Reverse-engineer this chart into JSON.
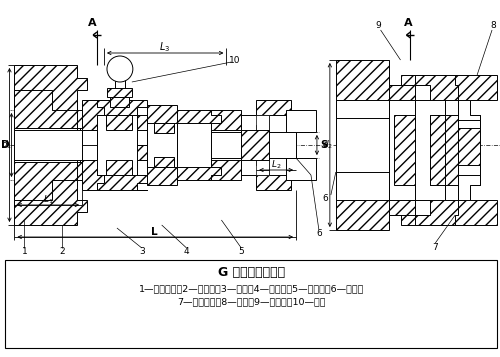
{
  "title": "G 型平行轴联轴器",
  "caption_line1": "1—半联轴器；2—主动盘；3—连杆；4—中间盘；5—被动盘；6—销轴；",
  "caption_line2": "7—滚动轴承；8—挡环；9—隔离环；10—销轴",
  "bg_color": "#ffffff",
  "line_color": "#000000",
  "fig_width": 5.0,
  "fig_height": 3.57
}
